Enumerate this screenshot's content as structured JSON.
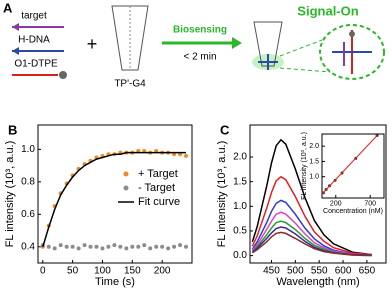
{
  "panel_a": {
    "label": "A",
    "strands": [
      "target",
      "H-DNA",
      "O1-DTPE"
    ],
    "structure_label": "TP'-G4",
    "arrow_label": "Biosensing",
    "time_label": "< 2 min",
    "result_label": "Signal-On"
  },
  "chart_data": [
    {
      "type": "line",
      "label": "B",
      "xlabel": "Time (s)",
      "ylabel": "FL intensity (10³, a.u.)",
      "x": [
        0,
        10,
        20,
        30,
        40,
        50,
        60,
        70,
        80,
        90,
        100,
        110,
        120,
        130,
        140,
        150,
        160,
        170,
        180,
        190,
        200,
        210,
        220,
        230,
        240
      ],
      "series": [
        {
          "name": "+ Target",
          "color": "#f08a24",
          "mode": "markers",
          "values": [
            0.4,
            0.53,
            0.65,
            0.73,
            0.79,
            0.84,
            0.88,
            0.91,
            0.93,
            0.95,
            0.96,
            0.97,
            0.97,
            0.98,
            0.98,
            0.98,
            0.99,
            0.99,
            0.98,
            0.99,
            0.98,
            0.98,
            0.97,
            0.97,
            0.96
          ]
        },
        {
          "name": "- Target",
          "color": "#8c8c8c",
          "mode": "markers",
          "values": [
            0.41,
            0.4,
            0.39,
            0.41,
            0.4,
            0.4,
            0.39,
            0.41,
            0.4,
            0.4,
            0.39,
            0.4,
            0.41,
            0.4,
            0.39,
            0.4,
            0.4,
            0.41,
            0.39,
            0.4,
            0.4,
            0.39,
            0.4,
            0.41,
            0.4
          ]
        },
        {
          "name": "Fit curve",
          "color": "#000000",
          "mode": "line",
          "values": [
            0.4,
            0.52,
            0.63,
            0.72,
            0.78,
            0.83,
            0.87,
            0.9,
            0.92,
            0.94,
            0.95,
            0.96,
            0.97,
            0.97,
            0.98,
            0.98,
            0.98,
            0.98,
            0.98,
            0.98,
            0.98,
            0.98,
            0.98,
            0.98,
            0.98
          ]
        }
      ],
      "xlim": [
        -8,
        250
      ],
      "ylim": [
        0.3,
        1.15
      ],
      "xticks": [
        0,
        50,
        100,
        150,
        200
      ],
      "yticks": [
        0.4,
        0.6,
        0.8,
        {
          "value": 1,
          "label": "1.0"
        }
      ],
      "legend": "center right"
    },
    {
      "type": "line",
      "label": "C",
      "xlabel": "Wavelength (nm)",
      "ylabel": "FL intensity (10³, a.u.)",
      "x": [
        410,
        420,
        440,
        450,
        460,
        470,
        480,
        500,
        520,
        540,
        560,
        580,
        620,
        660
      ],
      "series": [
        {
          "color": "#000000",
          "mode": "line",
          "values": [
            0.28,
            0.59,
            1.41,
            1.88,
            2.23,
            2.35,
            2.26,
            1.76,
            1.18,
            0.71,
            0.42,
            0.24,
            0.07,
            0.02
          ]
        },
        {
          "color": "#e8201e",
          "mode": "line",
          "values": [
            0.19,
            0.4,
            0.96,
            1.28,
            1.52,
            1.6,
            1.54,
            1.2,
            0.8,
            0.48,
            0.29,
            0.16,
            0.05,
            0.02
          ]
        },
        {
          "color": "#2a3cd8",
          "mode": "line",
          "values": [
            0.13,
            0.28,
            0.67,
            0.9,
            1.06,
            1.12,
            1.08,
            0.84,
            0.56,
            0.34,
            0.2,
            0.11,
            0.03,
            0.01
          ]
        },
        {
          "color": "#e040c8",
          "mode": "line",
          "values": [
            0.11,
            0.22,
            0.53,
            0.7,
            0.84,
            0.88,
            0.84,
            0.66,
            0.44,
            0.26,
            0.16,
            0.09,
            0.03,
            0.01
          ]
        },
        {
          "color": "#2aa02a",
          "mode": "line",
          "values": [
            0.08,
            0.18,
            0.42,
            0.56,
            0.67,
            0.7,
            0.67,
            0.53,
            0.35,
            0.21,
            0.13,
            0.07,
            0.02,
            0.01
          ]
        },
        {
          "color": "#3a2a9a",
          "mode": "line",
          "values": [
            0.07,
            0.15,
            0.35,
            0.46,
            0.55,
            0.58,
            0.56,
            0.44,
            0.29,
            0.17,
            0.1,
            0.06,
            0.02,
            0.01
          ]
        },
        {
          "color": "#8a2a2a",
          "mode": "line",
          "values": [
            0.06,
            0.12,
            0.28,
            0.38,
            0.45,
            0.47,
            0.45,
            0.35,
            0.24,
            0.14,
            0.08,
            0.05,
            0.01,
            0
          ]
        }
      ],
      "xlim": [
        405,
        690
      ],
      "ylim": [
        -0.15,
        2.65
      ],
      "xticks": [
        450,
        500,
        550,
        600,
        650
      ],
      "yticks": [
        {
          "value": 0,
          "label": "0.0"
        },
        0.5,
        {
          "value": 1,
          "label": "1.0"
        },
        1.5,
        {
          "value": 2,
          "label": "2.0"
        }
      ]
    },
    {
      "type": "scatter",
      "xlabel": "Concentration (nM)",
      "ylabel": "FL intensity (10³, a.u.)",
      "x": [
        20,
        60,
        110,
        190,
        290,
        490,
        800
      ],
      "series": [
        {
          "color": "#333333",
          "mode": "markers",
          "values": [
            0.47,
            0.58,
            0.7,
            0.88,
            1.12,
            1.6,
            2.35
          ]
        },
        {
          "color": "#e8201e",
          "mode": "line",
          "x": [
            0,
            800
          ],
          "values": [
            0.43,
            2.35
          ]
        }
      ],
      "xlim": [
        0,
        900
      ],
      "ylim": [
        0.3,
        2.4
      ],
      "xticks": [
        200,
        700
      ],
      "yticks": [
        {
          "value": 1,
          "label": "1.0"
        },
        1.5,
        {
          "value": 2,
          "label": "2.0"
        }
      ]
    }
  ]
}
